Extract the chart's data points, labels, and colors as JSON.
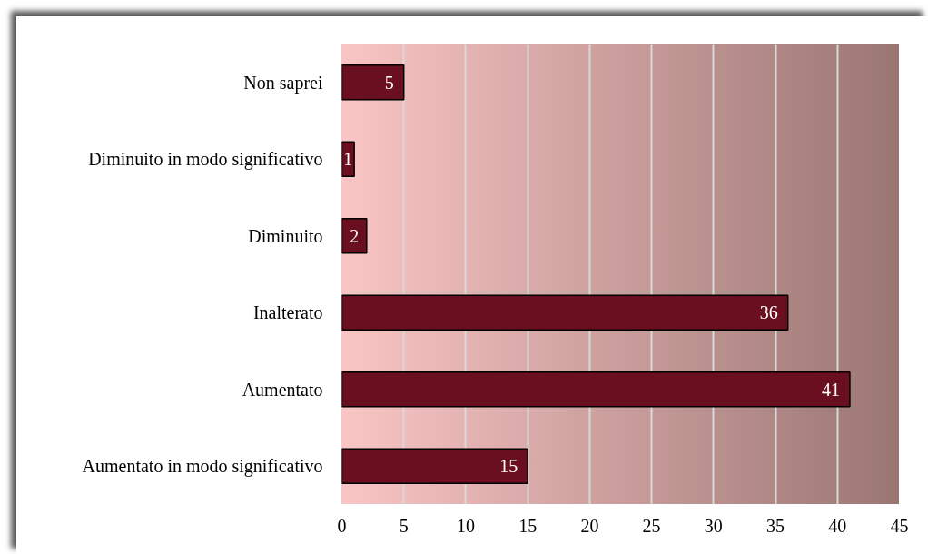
{
  "chart_data": {
    "type": "bar",
    "orientation": "horizontal",
    "categories": [
      "Non saprei",
      "Diminuito in modo significativo",
      "Diminuito",
      "Inalterato",
      "Aumentato",
      "Aumentato in modo significativo"
    ],
    "values": [
      5,
      1,
      2,
      36,
      41,
      15
    ],
    "color": "#6a0f1f",
    "xlim": [
      0,
      45
    ],
    "xticks": [
      0,
      5,
      10,
      15,
      20,
      25,
      30,
      35,
      40,
      45
    ],
    "grid": "x",
    "data_labels": true
  }
}
